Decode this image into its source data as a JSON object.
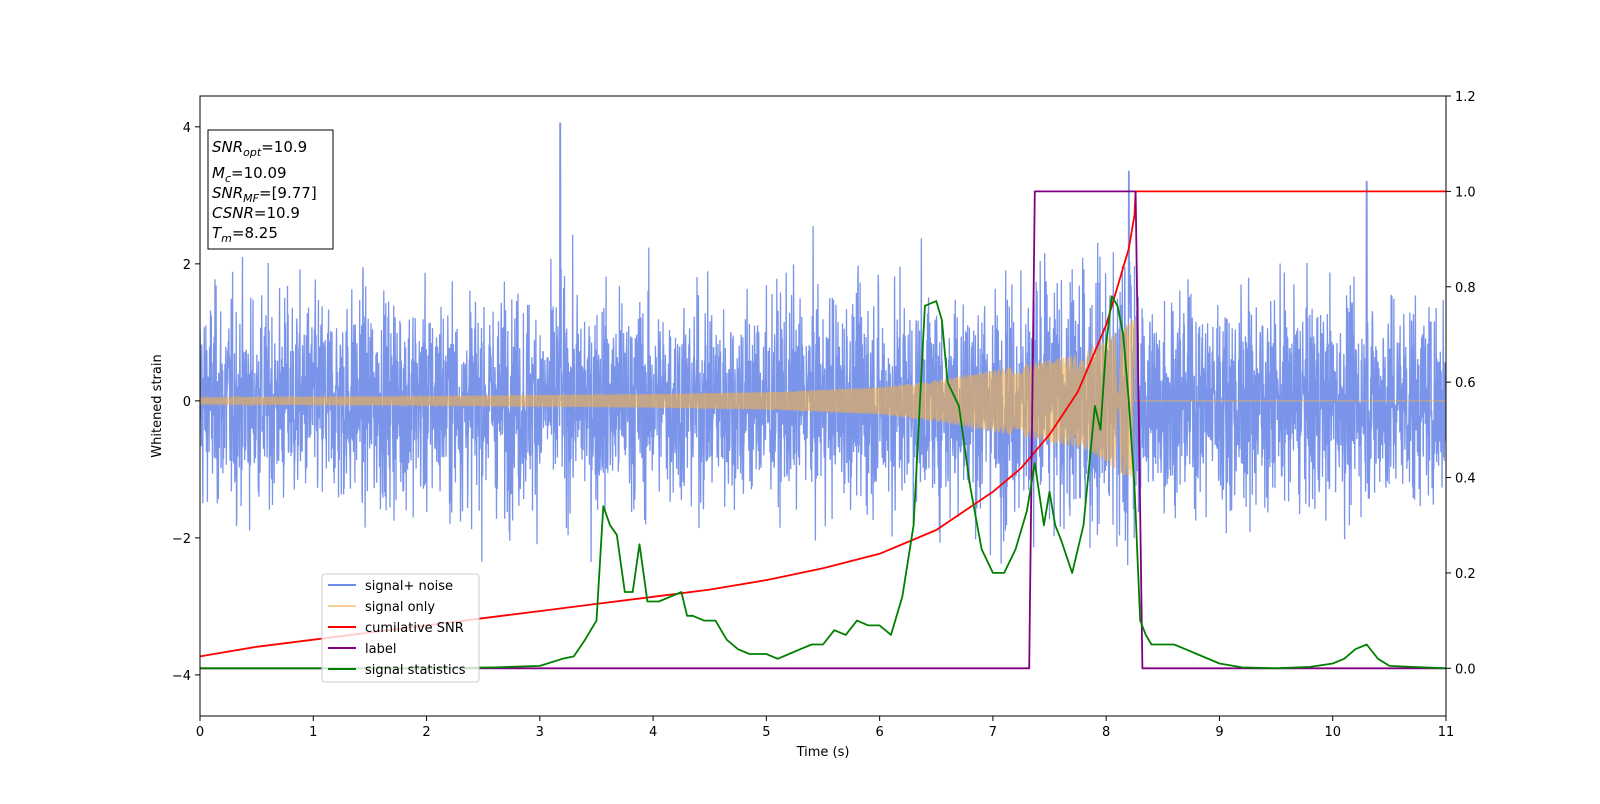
{
  "chart_data": {
    "type": "line",
    "xlabel": "Time (s)",
    "ylabel": "Whitened strain",
    "xlim": [
      0,
      11
    ],
    "ylim_left": [
      -4.6,
      4.45
    ],
    "ylim_right": [
      -0.1,
      1.2
    ],
    "x_ticks": [
      "0",
      "1",
      "2",
      "3",
      "4",
      "5",
      "6",
      "7",
      "8",
      "9",
      "10",
      "11"
    ],
    "y_left_ticks": [
      "−4",
      "−2",
      "0",
      "2",
      "4"
    ],
    "y_right_ticks": [
      "0.0",
      "0.2",
      "0.4",
      "0.6",
      "0.8",
      "1.0",
      "1.2"
    ],
    "legend_position": "lower-left",
    "colors": {
      "signal_noise": "#6f8be8",
      "signal_only": "#f4b04a",
      "cumulative_snr": "#ff0000",
      "label": "#800080",
      "signal_statistics": "#008000"
    },
    "series": [
      {
        "name": "signal+ noise",
        "axis": "left",
        "description_values": "noise samples roughly within ±2.5, peak about 4.0 near t=3.2",
        "envelope": {
          "typical_min": -2.3,
          "typical_max": 2.5,
          "peak_max": 4.05,
          "peak_min": -3.4
        }
      },
      {
        "name": "signal only",
        "axis": "left",
        "amplitude_points": [
          [
            0,
            0.05
          ],
          [
            2,
            0.07
          ],
          [
            4,
            0.1
          ],
          [
            5,
            0.13
          ],
          [
            6,
            0.2
          ],
          [
            6.5,
            0.3
          ],
          [
            7,
            0.45
          ],
          [
            7.5,
            0.6
          ],
          [
            7.8,
            0.7
          ],
          [
            8.0,
            0.9
          ],
          [
            8.15,
            1.1
          ],
          [
            8.25,
            1.2
          ],
          [
            8.26,
            0
          ],
          [
            11,
            0
          ]
        ]
      },
      {
        "name": "cumilative SNR",
        "axis": "right",
        "x": [
          0,
          0.5,
          1,
          1.5,
          2,
          2.5,
          3,
          3.5,
          4,
          4.5,
          5,
          5.5,
          6,
          6.5,
          7,
          7.25,
          7.5,
          7.75,
          8,
          8.1,
          8.2,
          8.25,
          8.26,
          11
        ],
        "y": [
          0.025,
          0.045,
          0.06,
          0.075,
          0.09,
          0.105,
          0.12,
          0.135,
          0.15,
          0.165,
          0.185,
          0.21,
          0.24,
          0.29,
          0.37,
          0.42,
          0.49,
          0.58,
          0.72,
          0.8,
          0.88,
          0.95,
          1.0,
          1.0
        ]
      },
      {
        "name": "label",
        "axis": "right",
        "x": [
          0,
          7.32,
          7.37,
          8.26,
          8.32,
          11
        ],
        "y": [
          0,
          0,
          1,
          1,
          0,
          0
        ]
      },
      {
        "name": "signal statistics",
        "axis": "right",
        "x": [
          0,
          1,
          2,
          2.6,
          3,
          3.2,
          3.3,
          3.4,
          3.5,
          3.56,
          3.62,
          3.68,
          3.75,
          3.82,
          3.88,
          3.95,
          4.05,
          4.15,
          4.25,
          4.3,
          4.35,
          4.45,
          4.55,
          4.65,
          4.75,
          4.85,
          5,
          5.1,
          5.2,
          5.3,
          5.4,
          5.5,
          5.6,
          5.7,
          5.8,
          5.9,
          6,
          6.1,
          6.2,
          6.3,
          6.4,
          6.5,
          6.55,
          6.6,
          6.7,
          6.8,
          6.9,
          7,
          7.1,
          7.2,
          7.3,
          7.37,
          7.45,
          7.5,
          7.55,
          7.6,
          7.7,
          7.8,
          7.9,
          7.95,
          8.0,
          8.05,
          8.1,
          8.15,
          8.2,
          8.25,
          8.3,
          8.35,
          8.4,
          8.5,
          8.6,
          8.7,
          8.8,
          9,
          9.2,
          9.5,
          9.8,
          10,
          10.1,
          10.2,
          10.3,
          10.4,
          10.5,
          11
        ],
        "y": [
          0,
          0,
          0,
          0.002,
          0.005,
          0.02,
          0.025,
          0.06,
          0.1,
          0.34,
          0.3,
          0.28,
          0.16,
          0.16,
          0.26,
          0.14,
          0.14,
          0.15,
          0.16,
          0.11,
          0.11,
          0.1,
          0.1,
          0.06,
          0.04,
          0.03,
          0.03,
          0.02,
          0.03,
          0.04,
          0.05,
          0.05,
          0.08,
          0.07,
          0.1,
          0.09,
          0.09,
          0.07,
          0.15,
          0.3,
          0.76,
          0.77,
          0.73,
          0.6,
          0.55,
          0.38,
          0.25,
          0.2,
          0.2,
          0.25,
          0.33,
          0.43,
          0.3,
          0.37,
          0.3,
          0.27,
          0.2,
          0.3,
          0.55,
          0.5,
          0.68,
          0.78,
          0.76,
          0.7,
          0.56,
          0.38,
          0.1,
          0.07,
          0.05,
          0.05,
          0.05,
          0.04,
          0.03,
          0.01,
          0.002,
          0,
          0.003,
          0.01,
          0.02,
          0.04,
          0.05,
          0.02,
          0.005,
          0
        ]
      }
    ]
  },
  "legend": [
    {
      "label": "signal+ noise"
    },
    {
      "label": "signal only"
    },
    {
      "label": "cumilative SNR"
    },
    {
      "label": "label"
    },
    {
      "label": "signal statistics"
    }
  ],
  "infobox": {
    "l1_var": "SNR",
    "l1_sub": "opt",
    "l1_val": "=10.9",
    "l2_var": "M",
    "l2_sub": "c",
    "l2_val": "=10.09",
    "l3_var": "SNR",
    "l3_sub": "MF",
    "l3_val": "=[9.77]",
    "l4_var": "CSNR",
    "l4_val": "=10.9",
    "l5_var": "T",
    "l5_sub": "m",
    "l5_val": "=8.25"
  }
}
